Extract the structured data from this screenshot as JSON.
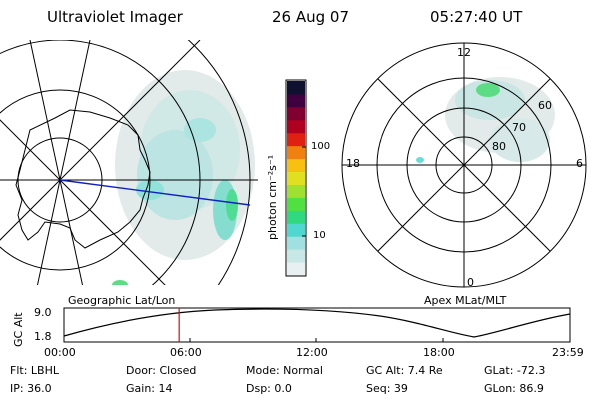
{
  "header": {
    "instrument": "Ultraviolet Imager",
    "date": "26 Aug 07",
    "time": "05:27:40 UT"
  },
  "colorbar": {
    "unit": "photon cm⁻²s⁻¹",
    "ticks": [
      "100",
      "10"
    ],
    "colors": [
      "#e8f0f0",
      "#c8e8e8",
      "#a0e0e0",
      "#50d8d0",
      "#30d880",
      "#50e040",
      "#a0e030",
      "#e0e020",
      "#f8c010",
      "#f08010",
      "#e02010",
      "#b00020",
      "#800030",
      "#400040",
      "#101030"
    ]
  },
  "left_panel": {
    "label": "Geographic Lat/Lon"
  },
  "right_panel": {
    "label": "Apex MLat/MLT",
    "mlt_labels": [
      "12",
      "18",
      "6",
      "0"
    ],
    "lat_labels": [
      "60",
      "70",
      "80"
    ]
  },
  "altitude_strip": {
    "ylabel": "GC Alt",
    "y_ticks": [
      "9.0",
      "1.8"
    ],
    "x_ticks": [
      "00:00",
      "06:00",
      "12:00",
      "18:00",
      "23:59"
    ],
    "current_time_fraction": 0.2276
  },
  "footer": {
    "filter": "Flt: LBHL",
    "ip": "IP: 36.0",
    "door": "Door: Closed",
    "gain": "Gain: 14",
    "mode": "Mode: Normal",
    "dsp": "Dsp:      0.0",
    "gc_alt": "GC Alt: 7.4 Re",
    "seq": "Seq: 39",
    "glat": "GLat: -72.3",
    "glon": "GLon:  86.9"
  }
}
